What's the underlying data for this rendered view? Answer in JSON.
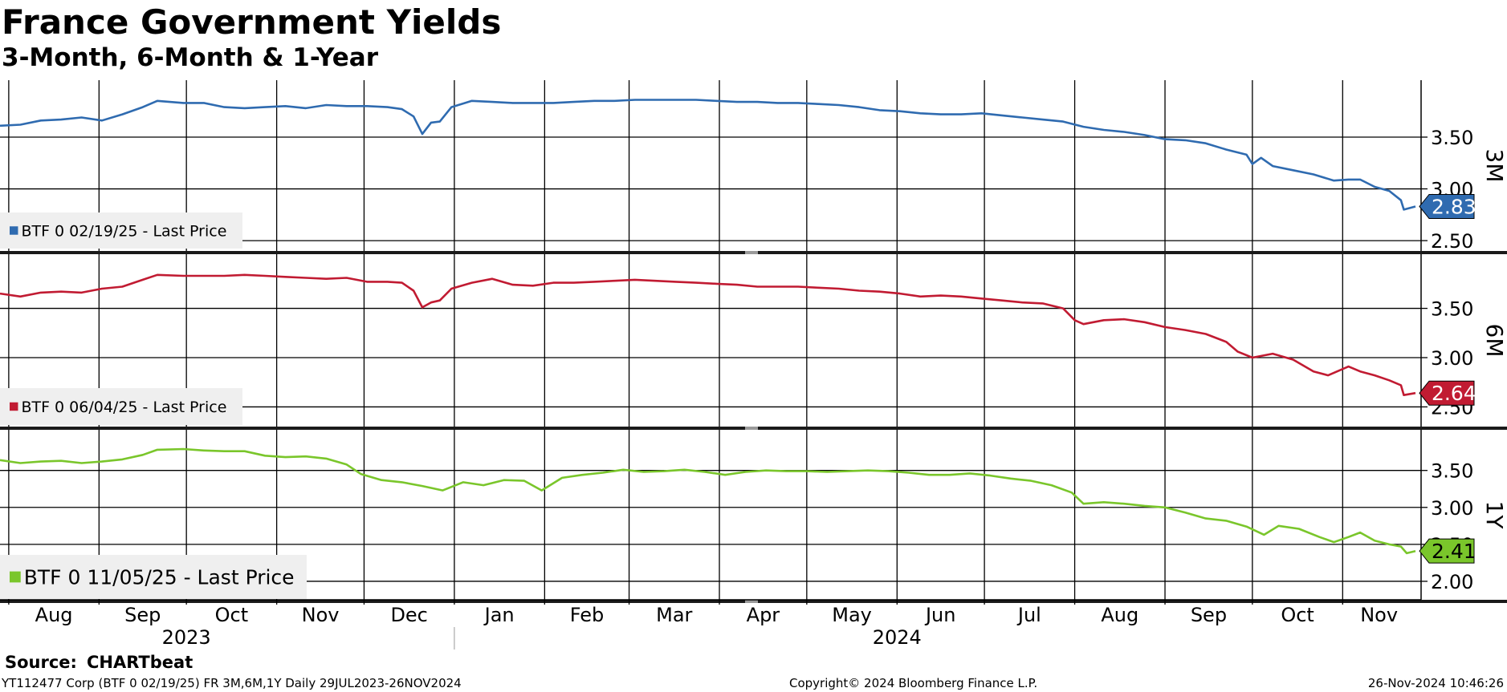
{
  "header": {
    "title": "France Government Yields",
    "subtitle": "3-Month, 6-Month & 1-Year"
  },
  "footer": {
    "source_label": "Source:",
    "source_value": "CHARTbeat",
    "ticker_line": "YT112477 Corp (BTF 0 02/19/25) FR 3M,6M,1Y  Daily 29JUL2023-26NOV2024",
    "copyright": "Copyright© 2024 Bloomberg Finance L.P.",
    "timestamp": "26-Nov-2024 10:46:26"
  },
  "chart_data": {
    "type": "line",
    "x_start": "2023-07-29",
    "x_end": "2024-11-26",
    "x_months": [
      {
        "label": "Aug",
        "date": "2023-08-01"
      },
      {
        "label": "Sep",
        "date": "2023-09-01"
      },
      {
        "label": "Oct",
        "date": "2023-10-01"
      },
      {
        "label": "Nov",
        "date": "2023-11-01"
      },
      {
        "label": "Dec",
        "date": "2023-12-01"
      },
      {
        "label": "Jan",
        "date": "2024-01-01"
      },
      {
        "label": "Feb",
        "date": "2024-02-01"
      },
      {
        "label": "Mar",
        "date": "2024-03-01"
      },
      {
        "label": "Apr",
        "date": "2024-04-01"
      },
      {
        "label": "May",
        "date": "2024-05-01"
      },
      {
        "label": "Jun",
        "date": "2024-06-01"
      },
      {
        "label": "Jul",
        "date": "2024-07-01"
      },
      {
        "label": "Aug",
        "date": "2024-08-01"
      },
      {
        "label": "Sep",
        "date": "2024-09-01"
      },
      {
        "label": "Oct",
        "date": "2024-10-01"
      },
      {
        "label": "Nov",
        "date": "2024-11-01"
      }
    ],
    "x_years": [
      {
        "label": "2023",
        "date": "2023-10-01"
      },
      {
        "label": "2024",
        "date": "2024-06-01"
      }
    ],
    "grid": true,
    "panels": [
      {
        "name": "3M",
        "legend": "BTF 0 02/19/25 - Last Price",
        "color": "#2f6bb0",
        "ylim": [
          2.4,
          4.05
        ],
        "yticks": [
          "3.50",
          "3.00",
          "2.50"
        ],
        "last_value": "2.83",
        "points": [
          [
            "2023-07-29",
            3.61
          ],
          [
            "2023-08-05",
            3.62
          ],
          [
            "2023-08-12",
            3.66
          ],
          [
            "2023-08-19",
            3.67
          ],
          [
            "2023-08-26",
            3.69
          ],
          [
            "2023-09-02",
            3.66
          ],
          [
            "2023-09-09",
            3.72
          ],
          [
            "2023-09-16",
            3.79
          ],
          [
            "2023-09-21",
            3.85
          ],
          [
            "2023-09-30",
            3.83
          ],
          [
            "2023-10-07",
            3.83
          ],
          [
            "2023-10-14",
            3.79
          ],
          [
            "2023-10-21",
            3.78
          ],
          [
            "2023-10-28",
            3.79
          ],
          [
            "2023-11-04",
            3.8
          ],
          [
            "2023-11-11",
            3.78
          ],
          [
            "2023-11-18",
            3.81
          ],
          [
            "2023-11-25",
            3.8
          ],
          [
            "2023-12-02",
            3.8
          ],
          [
            "2023-12-09",
            3.79
          ],
          [
            "2023-12-14",
            3.77
          ],
          [
            "2023-12-18",
            3.7
          ],
          [
            "2023-12-21",
            3.53
          ],
          [
            "2023-12-24",
            3.64
          ],
          [
            "2023-12-27",
            3.65
          ],
          [
            "2023-12-31",
            3.79
          ],
          [
            "2024-01-07",
            3.85
          ],
          [
            "2024-01-14",
            3.84
          ],
          [
            "2024-01-21",
            3.83
          ],
          [
            "2024-01-28",
            3.83
          ],
          [
            "2024-02-04",
            3.83
          ],
          [
            "2024-02-11",
            3.84
          ],
          [
            "2024-02-18",
            3.85
          ],
          [
            "2024-02-25",
            3.85
          ],
          [
            "2024-03-03",
            3.86
          ],
          [
            "2024-03-10",
            3.86
          ],
          [
            "2024-03-17",
            3.86
          ],
          [
            "2024-03-24",
            3.86
          ],
          [
            "2024-03-31",
            3.85
          ],
          [
            "2024-04-07",
            3.84
          ],
          [
            "2024-04-14",
            3.84
          ],
          [
            "2024-04-21",
            3.83
          ],
          [
            "2024-04-28",
            3.83
          ],
          [
            "2024-05-05",
            3.82
          ],
          [
            "2024-05-12",
            3.81
          ],
          [
            "2024-05-19",
            3.79
          ],
          [
            "2024-05-26",
            3.76
          ],
          [
            "2024-06-02",
            3.75
          ],
          [
            "2024-06-09",
            3.73
          ],
          [
            "2024-06-16",
            3.72
          ],
          [
            "2024-06-23",
            3.72
          ],
          [
            "2024-06-30",
            3.73
          ],
          [
            "2024-07-07",
            3.71
          ],
          [
            "2024-07-14",
            3.69
          ],
          [
            "2024-07-21",
            3.67
          ],
          [
            "2024-07-28",
            3.65
          ],
          [
            "2024-08-04",
            3.6
          ],
          [
            "2024-08-11",
            3.57
          ],
          [
            "2024-08-18",
            3.55
          ],
          [
            "2024-08-25",
            3.52
          ],
          [
            "2024-09-01",
            3.48
          ],
          [
            "2024-09-08",
            3.47
          ],
          [
            "2024-09-15",
            3.44
          ],
          [
            "2024-09-22",
            3.38
          ],
          [
            "2024-09-29",
            3.33
          ],
          [
            "2024-10-01",
            3.24
          ],
          [
            "2024-10-04",
            3.3
          ],
          [
            "2024-10-08",
            3.22
          ],
          [
            "2024-10-15",
            3.18
          ],
          [
            "2024-10-22",
            3.14
          ],
          [
            "2024-10-29",
            3.08
          ],
          [
            "2024-11-03",
            3.09
          ],
          [
            "2024-11-07",
            3.09
          ],
          [
            "2024-11-12",
            3.02
          ],
          [
            "2024-11-17",
            2.98
          ],
          [
            "2024-11-21",
            2.89
          ],
          [
            "2024-11-22",
            2.8
          ],
          [
            "2024-11-26",
            2.83
          ]
        ]
      },
      {
        "name": "6M",
        "legend": "BTF 0 06/04/25 - Last Price",
        "color": "#c11b32",
        "ylim": [
          2.3,
          4.05
        ],
        "yticks": [
          "3.50",
          "3.00",
          "2.50"
        ],
        "last_value": "2.64",
        "points": [
          [
            "2023-07-29",
            3.65
          ],
          [
            "2023-08-05",
            3.62
          ],
          [
            "2023-08-12",
            3.66
          ],
          [
            "2023-08-19",
            3.67
          ],
          [
            "2023-08-26",
            3.66
          ],
          [
            "2023-09-02",
            3.7
          ],
          [
            "2023-09-09",
            3.72
          ],
          [
            "2023-09-16",
            3.79
          ],
          [
            "2023-09-21",
            3.84
          ],
          [
            "2023-09-30",
            3.83
          ],
          [
            "2023-10-07",
            3.83
          ],
          [
            "2023-10-14",
            3.83
          ],
          [
            "2023-10-21",
            3.84
          ],
          [
            "2023-10-28",
            3.83
          ],
          [
            "2023-11-04",
            3.82
          ],
          [
            "2023-11-11",
            3.81
          ],
          [
            "2023-11-18",
            3.8
          ],
          [
            "2023-11-25",
            3.81
          ],
          [
            "2023-12-02",
            3.77
          ],
          [
            "2023-12-09",
            3.77
          ],
          [
            "2023-12-14",
            3.76
          ],
          [
            "2023-12-18",
            3.68
          ],
          [
            "2023-12-21",
            3.51
          ],
          [
            "2023-12-24",
            3.56
          ],
          [
            "2023-12-27",
            3.58
          ],
          [
            "2023-12-31",
            3.7
          ],
          [
            "2024-01-07",
            3.76
          ],
          [
            "2024-01-14",
            3.8
          ],
          [
            "2024-01-21",
            3.74
          ],
          [
            "2024-01-28",
            3.73
          ],
          [
            "2024-02-04",
            3.76
          ],
          [
            "2024-02-11",
            3.76
          ],
          [
            "2024-02-18",
            3.77
          ],
          [
            "2024-02-25",
            3.78
          ],
          [
            "2024-03-03",
            3.79
          ],
          [
            "2024-03-10",
            3.78
          ],
          [
            "2024-03-17",
            3.77
          ],
          [
            "2024-03-24",
            3.76
          ],
          [
            "2024-03-31",
            3.75
          ],
          [
            "2024-04-07",
            3.74
          ],
          [
            "2024-04-14",
            3.72
          ],
          [
            "2024-04-21",
            3.72
          ],
          [
            "2024-04-28",
            3.72
          ],
          [
            "2024-05-05",
            3.71
          ],
          [
            "2024-05-12",
            3.7
          ],
          [
            "2024-05-19",
            3.68
          ],
          [
            "2024-05-26",
            3.67
          ],
          [
            "2024-06-02",
            3.65
          ],
          [
            "2024-06-09",
            3.62
          ],
          [
            "2024-06-16",
            3.63
          ],
          [
            "2024-06-23",
            3.62
          ],
          [
            "2024-06-30",
            3.6
          ],
          [
            "2024-07-07",
            3.58
          ],
          [
            "2024-07-14",
            3.56
          ],
          [
            "2024-07-21",
            3.55
          ],
          [
            "2024-07-28",
            3.5
          ],
          [
            "2024-08-01",
            3.38
          ],
          [
            "2024-08-04",
            3.34
          ],
          [
            "2024-08-11",
            3.38
          ],
          [
            "2024-08-18",
            3.39
          ],
          [
            "2024-08-25",
            3.36
          ],
          [
            "2024-09-01",
            3.31
          ],
          [
            "2024-09-08",
            3.28
          ],
          [
            "2024-09-15",
            3.24
          ],
          [
            "2024-09-22",
            3.16
          ],
          [
            "2024-09-26",
            3.06
          ],
          [
            "2024-10-01",
            3.0
          ],
          [
            "2024-10-08",
            3.04
          ],
          [
            "2024-10-15",
            2.98
          ],
          [
            "2024-10-22",
            2.86
          ],
          [
            "2024-10-27",
            2.82
          ],
          [
            "2024-11-03",
            2.91
          ],
          [
            "2024-11-07",
            2.86
          ],
          [
            "2024-11-12",
            2.82
          ],
          [
            "2024-11-17",
            2.77
          ],
          [
            "2024-11-21",
            2.72
          ],
          [
            "2024-11-22",
            2.62
          ],
          [
            "2024-11-26",
            2.64
          ]
        ]
      },
      {
        "name": "1Y",
        "legend": "BTF 0 11/05/25 - Last Price",
        "color": "#7ac62b",
        "ylim": [
          1.75,
          4.05
        ],
        "yticks": [
          "3.50",
          "3.00",
          "2.50",
          "2.00"
        ],
        "last_value": "2.41",
        "points": [
          [
            "2023-07-29",
            3.64
          ],
          [
            "2023-08-05",
            3.6
          ],
          [
            "2023-08-12",
            3.62
          ],
          [
            "2023-08-19",
            3.63
          ],
          [
            "2023-08-26",
            3.6
          ],
          [
            "2023-09-02",
            3.62
          ],
          [
            "2023-09-09",
            3.65
          ],
          [
            "2023-09-16",
            3.71
          ],
          [
            "2023-09-21",
            3.78
          ],
          [
            "2023-09-30",
            3.79
          ],
          [
            "2023-10-07",
            3.77
          ],
          [
            "2023-10-14",
            3.76
          ],
          [
            "2023-10-21",
            3.76
          ],
          [
            "2023-10-28",
            3.7
          ],
          [
            "2023-11-04",
            3.68
          ],
          [
            "2023-11-11",
            3.69
          ],
          [
            "2023-11-18",
            3.66
          ],
          [
            "2023-11-25",
            3.58
          ],
          [
            "2023-11-30",
            3.45
          ],
          [
            "2023-12-07",
            3.37
          ],
          [
            "2023-12-14",
            3.34
          ],
          [
            "2023-12-21",
            3.29
          ],
          [
            "2023-12-28",
            3.23
          ],
          [
            "2024-01-04",
            3.34
          ],
          [
            "2024-01-11",
            3.3
          ],
          [
            "2024-01-18",
            3.37
          ],
          [
            "2024-01-25",
            3.36
          ],
          [
            "2024-01-31",
            3.23
          ],
          [
            "2024-02-07",
            3.4
          ],
          [
            "2024-02-14",
            3.44
          ],
          [
            "2024-02-21",
            3.47
          ],
          [
            "2024-02-28",
            3.51
          ],
          [
            "2024-03-06",
            3.48
          ],
          [
            "2024-03-13",
            3.49
          ],
          [
            "2024-03-20",
            3.51
          ],
          [
            "2024-03-27",
            3.48
          ],
          [
            "2024-04-03",
            3.44
          ],
          [
            "2024-04-10",
            3.48
          ],
          [
            "2024-04-17",
            3.5
          ],
          [
            "2024-04-24",
            3.49
          ],
          [
            "2024-05-01",
            3.49
          ],
          [
            "2024-05-08",
            3.48
          ],
          [
            "2024-05-15",
            3.49
          ],
          [
            "2024-05-22",
            3.5
          ],
          [
            "2024-05-29",
            3.49
          ],
          [
            "2024-06-05",
            3.47
          ],
          [
            "2024-06-12",
            3.44
          ],
          [
            "2024-06-19",
            3.44
          ],
          [
            "2024-06-26",
            3.46
          ],
          [
            "2024-07-03",
            3.43
          ],
          [
            "2024-07-10",
            3.39
          ],
          [
            "2024-07-17",
            3.36
          ],
          [
            "2024-07-24",
            3.3
          ],
          [
            "2024-07-31",
            3.2
          ],
          [
            "2024-08-04",
            3.05
          ],
          [
            "2024-08-11",
            3.07
          ],
          [
            "2024-08-18",
            3.05
          ],
          [
            "2024-08-25",
            3.02
          ],
          [
            "2024-09-01",
            3.0
          ],
          [
            "2024-09-08",
            2.93
          ],
          [
            "2024-09-15",
            2.85
          ],
          [
            "2024-09-22",
            2.82
          ],
          [
            "2024-09-29",
            2.74
          ],
          [
            "2024-10-05",
            2.63
          ],
          [
            "2024-10-10",
            2.75
          ],
          [
            "2024-10-17",
            2.71
          ],
          [
            "2024-10-24",
            2.6
          ],
          [
            "2024-10-29",
            2.53
          ],
          [
            "2024-11-03",
            2.6
          ],
          [
            "2024-11-07",
            2.66
          ],
          [
            "2024-11-12",
            2.55
          ],
          [
            "2024-11-17",
            2.5
          ],
          [
            "2024-11-21",
            2.47
          ],
          [
            "2024-11-23",
            2.38
          ],
          [
            "2024-11-26",
            2.41
          ]
        ]
      }
    ]
  }
}
